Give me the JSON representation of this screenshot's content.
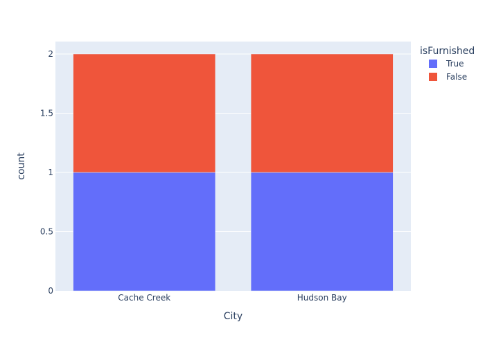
{
  "chart_data": {
    "type": "bar",
    "barmode": "stack",
    "categories": [
      "Cache Creek",
      "Hudson Bay"
    ],
    "series": [
      {
        "name": "True",
        "values": [
          1,
          1
        ],
        "color": "#636efa"
      },
      {
        "name": "False",
        "values": [
          1,
          1
        ],
        "color": "#ef553b"
      }
    ],
    "xlabel": "City",
    "ylabel": "count",
    "ylim": [
      0,
      2
    ],
    "yticks": [
      0,
      0.5,
      1,
      1.5,
      2
    ],
    "ytick_labels": [
      "0",
      "0.5",
      "1",
      "1.5",
      "2"
    ],
    "grid": true,
    "legend": {
      "title": "isFurnished",
      "placement": "top-right"
    },
    "colors": {
      "plot_background": "#e5ecf6",
      "gridline": "#ffffff",
      "text": "#2a3f5f"
    }
  }
}
